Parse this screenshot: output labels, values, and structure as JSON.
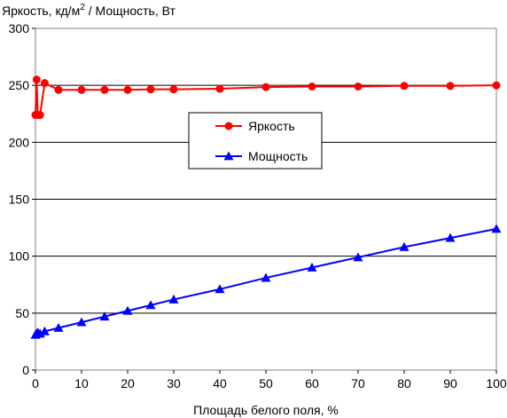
{
  "chart_data": {
    "type": "line",
    "title": "",
    "ylabel_main": "Яркость, кд/м",
    "ylabel_sup": "2",
    "ylabel_rest": " / Мощность, Вт",
    "xlabel": "Площадь белого поля, %",
    "xlim": [
      0,
      100
    ],
    "ylim": [
      0,
      300
    ],
    "xticks": [
      0,
      10,
      20,
      30,
      40,
      50,
      60,
      70,
      80,
      90,
      100
    ],
    "yticks": [
      0,
      50,
      100,
      150,
      200,
      250,
      300
    ],
    "grid": "horizontal",
    "legend_position": "center",
    "series": [
      {
        "name": "Яркость",
        "color": "#ff0000",
        "marker": "circle",
        "x": [
          0,
          0.25,
          0.5,
          1,
          2,
          5,
          10,
          15,
          20,
          25,
          30,
          40,
          50,
          60,
          70,
          80,
          90,
          100
        ],
        "y": [
          224,
          255,
          224,
          224,
          252,
          246,
          246,
          246,
          246,
          246.5,
          246.5,
          247,
          248.5,
          249,
          249,
          249.5,
          249.5,
          250
        ]
      },
      {
        "name": "Мощность",
        "color": "#0000ff",
        "marker": "triangle",
        "x": [
          0,
          0.25,
          0.5,
          1,
          2,
          5,
          10,
          15,
          20,
          25,
          30,
          40,
          50,
          60,
          70,
          80,
          90,
          100
        ],
        "y": [
          31,
          32,
          33,
          32,
          34,
          37,
          42,
          47,
          52,
          57,
          62,
          71,
          81,
          90,
          99,
          108,
          116,
          124
        ]
      }
    ]
  }
}
